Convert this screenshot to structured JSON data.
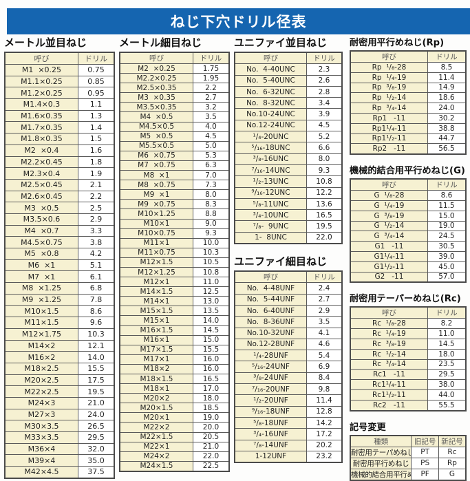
{
  "page_title": "ねじ下穴ドリル径表",
  "common_headers": {
    "name": "呼び",
    "drill": "ドリル"
  },
  "sections": {
    "metric_coarse": {
      "title": "メートル並目ねじ",
      "headers": [
        "呼び",
        "ドリル"
      ],
      "rows": [
        [
          "M1  ×0.25",
          "0.75"
        ],
        [
          "M1.1×0.25",
          "0.85"
        ],
        [
          "M1.2×0.25",
          "0.95"
        ],
        [
          "M1.4×0.3",
          "1.1"
        ],
        [
          "M1.6×0.35",
          "1.3"
        ],
        [
          "M1.7×0.35",
          "1.4"
        ],
        [
          "M1.8×0.35",
          "1.5"
        ],
        [
          "M2  ×0.4",
          "1.6"
        ],
        [
          "M2.2×0.45",
          "1.8"
        ],
        [
          "M2.3×0.4",
          "1.9"
        ],
        [
          "M2.5×0.45",
          "2.1"
        ],
        [
          "M2.6×0.45",
          "2.2"
        ],
        [
          "M3  ×0.5",
          "2.5"
        ],
        [
          "M3.5×0.6",
          "2.9"
        ],
        [
          "M4  ×0.7",
          "3.3"
        ],
        [
          "M4.5×0.75",
          "3.8"
        ],
        [
          "M5  ×0.8",
          "4.2"
        ],
        [
          "M6  ×1",
          "5.1"
        ],
        [
          "M7  ×1",
          "6.1"
        ],
        [
          "M8  ×1.25",
          "6.8"
        ],
        [
          "M9  ×1.25",
          "7.8"
        ],
        [
          "M10×1.5",
          "8.6"
        ],
        [
          "M11×1.5",
          "9.6"
        ],
        [
          "M12×1.75",
          "10.3"
        ],
        [
          "M14×2",
          "12.1"
        ],
        [
          "M16×2",
          "14.0"
        ],
        [
          "M18×2.5",
          "15.5"
        ],
        [
          "M20×2.5",
          "17.5"
        ],
        [
          "M22×2.5",
          "19.5"
        ],
        [
          "M24×3",
          "21.0"
        ],
        [
          "M27×3",
          "24.0"
        ],
        [
          "M30×3.5",
          "26.5"
        ],
        [
          "M33×3.5",
          "29.5"
        ],
        [
          "M36×4",
          "32.0"
        ],
        [
          "M39×4",
          "35.0"
        ],
        [
          "M42×4.5",
          "37.5"
        ]
      ]
    },
    "metric_fine": {
      "title": "メートル細目ねじ",
      "headers": [
        "呼び",
        "ドリル"
      ],
      "rows": [
        [
          "M2  ×0.25",
          "1.75"
        ],
        [
          "M2.2×0.25",
          "1.95"
        ],
        [
          "M2.5×0.35",
          "2.2"
        ],
        [
          "M3  ×0.35",
          "2.7"
        ],
        [
          "M3.5×0.35",
          "3.2"
        ],
        [
          "M4  ×0.5",
          "3.5"
        ],
        [
          "M4.5×0.5",
          "4.0"
        ],
        [
          "M5  ×0.5",
          "4.5"
        ],
        [
          "M5.5×0.5",
          "5.0"
        ],
        [
          "M6  ×0.75",
          "5.3"
        ],
        [
          "M7  ×0.75",
          "6.3"
        ],
        [
          "M8  ×1",
          "7.0"
        ],
        [
          "M8  ×0.75",
          "7.3"
        ],
        [
          "M9  ×1",
          "8.0"
        ],
        [
          "M9  ×0.75",
          "8.3"
        ],
        [
          "M10×1.25",
          "8.8"
        ],
        [
          "M10×1",
          "9.0"
        ],
        [
          "M10×0.75",
          "9.3"
        ],
        [
          "M11×1",
          "10.0"
        ],
        [
          "M11×0.75",
          "10.3"
        ],
        [
          "M12×1.5",
          "10.5"
        ],
        [
          "M12×1.25",
          "10.8"
        ],
        [
          "M12×1",
          "11.0"
        ],
        [
          "M14×1.5",
          "12.5"
        ],
        [
          "M14×1",
          "13.0"
        ],
        [
          "M15×1.5",
          "13.5"
        ],
        [
          "M15×1",
          "14.0"
        ],
        [
          "M16×1.5",
          "14.5"
        ],
        [
          "M16×1",
          "15.0"
        ],
        [
          "M17×1.5",
          "15.5"
        ],
        [
          "M17×1",
          "16.0"
        ],
        [
          "M18×2",
          "16.0"
        ],
        [
          "M18×1.5",
          "16.5"
        ],
        [
          "M18×1",
          "17.0"
        ],
        [
          "M20×2",
          "18.0"
        ],
        [
          "M20×1.5",
          "18.5"
        ],
        [
          "M20×1",
          "19.0"
        ],
        [
          "M22×2",
          "20.0"
        ],
        [
          "M22×1.5",
          "20.5"
        ],
        [
          "M22×1",
          "21.0"
        ],
        [
          "M24×2",
          "22.0"
        ],
        [
          "M24×1.5",
          "22.5"
        ]
      ]
    },
    "unified_coarse": {
      "title": "ユニファイ並目ねじ",
      "headers": [
        "呼び",
        "ドリル"
      ],
      "rows": [
        [
          "No.  4-40UNC",
          "2.3"
        ],
        [
          "No.  5-40UNC",
          "2.6"
        ],
        [
          "No.  6-32UNC",
          "2.8"
        ],
        [
          "No.  8-32UNC",
          "3.4"
        ],
        [
          "No.10-24UNC",
          "3.9"
        ],
        [
          "No.12-24UNC",
          "4.5"
        ],
        [
          "¹/₄-20UNC",
          "5.2"
        ],
        [
          "⁵/₁₆-18UNC",
          "6.6"
        ],
        [
          "³/₈-16UNC",
          "8.0"
        ],
        [
          "⁷/₁₆-14UNC",
          "9.3"
        ],
        [
          "¹/₂-13UNC",
          "10.8"
        ],
        [
          "⁹/₁₆-12UNC",
          "12.2"
        ],
        [
          "⁵/₈-11UNC",
          "13.6"
        ],
        [
          "³/₄-10UNC",
          "16.5"
        ],
        [
          "⁷/₈-  9UNC",
          "19.5"
        ],
        [
          "1-  8UNC",
          "22.0"
        ]
      ]
    },
    "unified_fine": {
      "title": "ユニファイ細目ねじ",
      "headers": [
        "呼び",
        "ドリル"
      ],
      "rows": [
        [
          "No.  4-48UNF",
          "2.4"
        ],
        [
          "No.  5-44UNF",
          "2.7"
        ],
        [
          "No.  6-40UNF",
          "2.9"
        ],
        [
          "No.  8-36UNF",
          "3.5"
        ],
        [
          "No.10-32UNF",
          "4.1"
        ],
        [
          "No.12-28UNF",
          "4.6"
        ],
        [
          "¹/₄-28UNF",
          "5.4"
        ],
        [
          "⁵/₁₆-24UNF",
          "6.9"
        ],
        [
          "³/₈-24UNF",
          "8.4"
        ],
        [
          "⁷/₁₆-20UNF",
          "9.8"
        ],
        [
          "¹/₂-20UNF",
          "11.4"
        ],
        [
          "⁹/₁₆-18UNF",
          "12.8"
        ],
        [
          "⁵/₈-18UNF",
          "14.2"
        ],
        [
          "³/₄-16UNF",
          "17.2"
        ],
        [
          "⁷/₈-14UNF",
          "20.2"
        ],
        [
          "1-12UNF",
          "23.2"
        ]
      ]
    },
    "rp": {
      "title": "耐密用平行めねじ(Rp)",
      "headers": [
        "呼び",
        "ドリル"
      ],
      "rows": [
        [
          "Rp  ¹/₈-28",
          "8.5"
        ],
        [
          "Rp  ¹/₄-19",
          "11.4"
        ],
        [
          "Rp  ³/₈-19",
          "14.9"
        ],
        [
          "Rp  ¹/₂-14",
          "18.6"
        ],
        [
          "Rp  ³/₄-14",
          "24.0"
        ],
        [
          "Rp1   -11",
          "30.2"
        ],
        [
          "Rp1¹/₄-11",
          "38.8"
        ],
        [
          "Rp1¹/₂-11",
          "44.7"
        ],
        [
          "Rp2   -11",
          "56.5"
        ]
      ]
    },
    "g": {
      "title": "機械的結合用平行めねじ(G)",
      "headers": [
        "呼び",
        "ドリル"
      ],
      "rows": [
        [
          "G  ¹/₈-28",
          "8.6"
        ],
        [
          "G  ¹/₄-19",
          "11.5"
        ],
        [
          "G  ³/₈-19",
          "15.0"
        ],
        [
          "G  ¹/₂-14",
          "19.0"
        ],
        [
          "G  ³/₄-14",
          "24.5"
        ],
        [
          "G1   -11",
          "30.5"
        ],
        [
          "G1¹/₄-11",
          "39.0"
        ],
        [
          "G1¹/₂-11",
          "45.0"
        ],
        [
          "G2   -11",
          "57.0"
        ]
      ]
    },
    "rc": {
      "title": "耐密用テーパーめねじ(Rc)",
      "headers": [
        "呼び",
        "ドリル"
      ],
      "rows": [
        [
          "Rc  ¹/₈-28",
          "8.2"
        ],
        [
          "Rc  ¹/₄-19",
          "11.0"
        ],
        [
          "Rc  ³/₈-19",
          "14.5"
        ],
        [
          "Rc  ¹/₂-14",
          "18.0"
        ],
        [
          "Rc  ³/₄-14",
          "23.5"
        ],
        [
          "Rc1   -11",
          "29.5"
        ],
        [
          "Rc1¹/₄-11",
          "38.0"
        ],
        [
          "Rc1¹/₂-11",
          "44.0"
        ],
        [
          "Rc2   -11",
          "55.5"
        ]
      ]
    },
    "symbol_change": {
      "title": "記号変更",
      "headers": [
        "種類",
        "旧記号",
        "新記号"
      ],
      "rows": [
        [
          "耐密用テーパめねじ",
          "PT",
          "Rc"
        ],
        [
          "耐密用平行めねじ",
          "PS",
          "Rp"
        ],
        [
          "機械的結合用平行めねじ",
          "PF",
          "G"
        ]
      ]
    }
  },
  "colors": {
    "banner_blue": "#1565b0",
    "cell_cream": "#f6f1d2",
    "cell_white": "#ffffff",
    "border_gray": "#5a5a5a"
  }
}
